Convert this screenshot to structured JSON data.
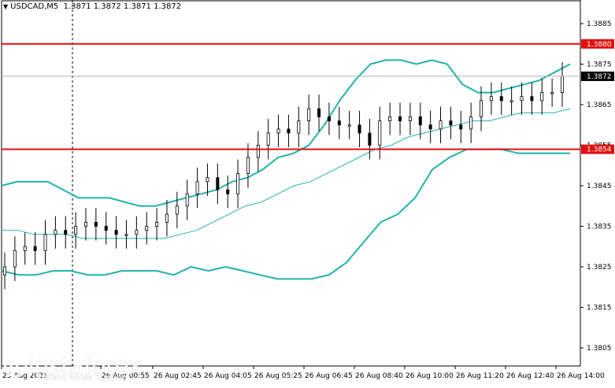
{
  "header": {
    "dropdown_icon": "triangle-down-icon",
    "symbol": "USDCAD,M5",
    "ohlc": "1.3871 1.3872 1.3871 1.3872"
  },
  "colors": {
    "up_candle": "#ffffff",
    "down_candle": "#000000",
    "bollinger": "#20b2aa",
    "level_line": "#e01010",
    "price_box": "#000000"
  },
  "chart_data": {
    "type": "candlestick",
    "title": "USDCAD,M5",
    "ylim": [
      1.38,
      1.389
    ],
    "y_ticks": [
      "1.3885",
      "1.3875",
      "1.3865",
      "1.3855",
      "1.3845",
      "1.3835",
      "1.3825",
      "1.3815",
      "1.3805"
    ],
    "x_ticks": [
      "25 Aug 2021",
      "26 Aug 00:55",
      "26 Aug 02:45",
      "26 Aug 04:05",
      "26 Aug 05:25",
      "26 Aug 06:45",
      "26 Aug 08:40",
      "26 Aug 10:00",
      "26 Aug 11:20",
      "26 Aug 12:40",
      "26 Aug 14:00"
    ],
    "levels": [
      {
        "label": "1.3880",
        "value": 1.388
      },
      {
        "label": "1.3854",
        "value": 1.3854
      }
    ],
    "current_price": {
      "label": "1.3872",
      "value": 1.3872
    },
    "bollinger_upper": [
      1.3845,
      1.3846,
      1.3846,
      1.3846,
      1.3844,
      1.3842,
      1.3842,
      1.3842,
      1.3841,
      1.384,
      1.384,
      1.3841,
      1.3842,
      1.3843,
      1.3844,
      1.3846,
      1.3847,
      1.3849,
      1.3852,
      1.3853,
      1.3855,
      1.386,
      1.3866,
      1.3871,
      1.3875,
      1.3876,
      1.3876,
      1.3875,
      1.3876,
      1.3875,
      1.387,
      1.3868,
      1.3868,
      1.3869,
      1.387,
      1.3871,
      1.3873,
      1.3875
    ],
    "bollinger_middle": [
      1.3834,
      1.3834,
      1.3833,
      1.3833,
      1.3833,
      1.3832,
      1.3832,
      1.3832,
      1.3832,
      1.3832,
      1.3832,
      1.3833,
      1.3834,
      1.3836,
      1.3838,
      1.384,
      1.3841,
      1.3843,
      1.3845,
      1.3846,
      1.3848,
      1.385,
      1.3852,
      1.3854,
      1.3855,
      1.3857,
      1.3858,
      1.3859,
      1.386,
      1.3861,
      1.3861,
      1.3862,
      1.3863,
      1.3863,
      1.3863,
      1.3864
    ],
    "bollinger_lower": [
      1.3824,
      1.3823,
      1.3823,
      1.3824,
      1.3824,
      1.3823,
      1.3823,
      1.3824,
      1.3824,
      1.3824,
      1.3823,
      1.3825,
      1.3824,
      1.3825,
      1.3824,
      1.3823,
      1.3822,
      1.3822,
      1.3822,
      1.3823,
      1.3826,
      1.3831,
      1.3836,
      1.3838,
      1.3842,
      1.3849,
      1.3852,
      1.3854,
      1.3854,
      1.3854,
      1.3853,
      1.3853,
      1.3853,
      1.3853
    ],
    "closes": [
      1.3825,
      1.3829,
      1.383,
      1.3829,
      1.3833,
      1.3834,
      1.3833,
      1.3835,
      1.3836,
      1.3835,
      1.3834,
      1.3833,
      1.3833,
      1.3834,
      1.3835,
      1.3836,
      1.3838,
      1.384,
      1.3843,
      1.3846,
      1.3847,
      1.3844,
      1.3843,
      1.3848,
      1.3852,
      1.3855,
      1.3858,
      1.3859,
      1.3858,
      1.3861,
      1.3864,
      1.3862,
      1.3861,
      1.386,
      1.386,
      1.3858,
      1.3855,
      1.3861,
      1.3862,
      1.3861,
      1.3862,
      1.386,
      1.3859,
      1.3861,
      1.386,
      1.3859,
      1.3862,
      1.3866,
      1.3867,
      1.3866,
      1.3866,
      1.3867,
      1.3866,
      1.3868,
      1.3868,
      1.3872
    ],
    "grid": false,
    "legend": "none"
  },
  "watermark": {
    "brand": "instaforex",
    "tagline": "Instant Forex Trading",
    "icon": "instaforex-logo-icon"
  }
}
